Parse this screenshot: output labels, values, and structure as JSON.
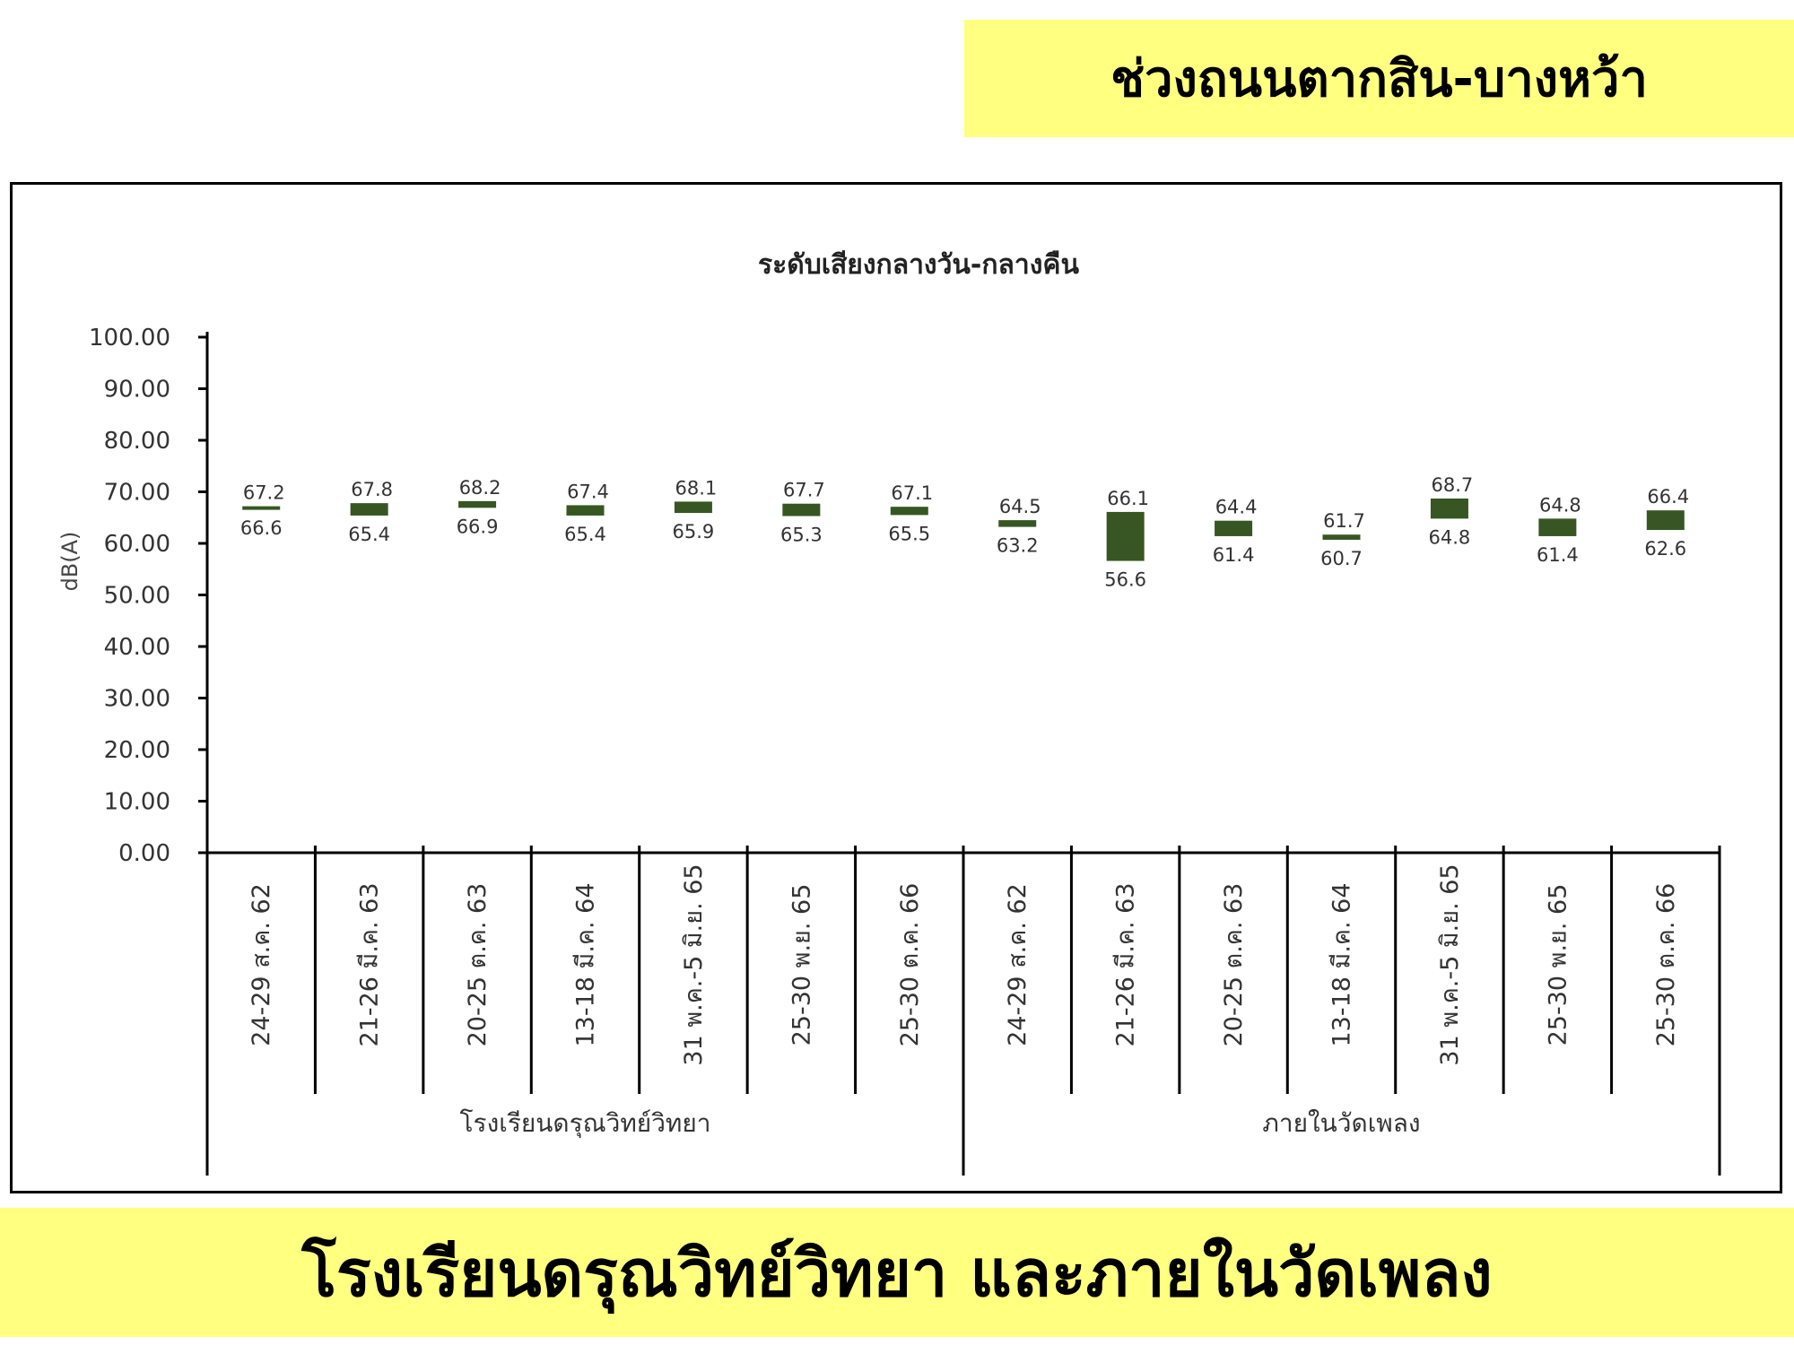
{
  "header": {
    "title": "ช่วงถนนตากสิน-บางหว้า"
  },
  "footer": {
    "title": "โรงเรียนดรุณวิทย์วิทยา และภายในวัดเพลง"
  },
  "chart_data": {
    "type": "floating-bar",
    "title": "ระดับเสียงกลางวัน-กลางคืน",
    "xlabel": "",
    "ylabel": "dB(A)",
    "ylim": [
      0,
      100
    ],
    "yticks": [
      "0.00",
      "10.00",
      "20.00",
      "30.00",
      "40.00",
      "50.00",
      "60.00",
      "70.00",
      "80.00",
      "90.00",
      "100.00"
    ],
    "bar_color": "#375623",
    "groups": [
      {
        "name": "โรงเรียนดรุณวิทย์วิทยา",
        "categories": [
          "24-29 ส.ค. 62",
          "21-26 มี.ค. 63",
          "20-25 ต.ค. 63",
          "13-18 มี.ค. 64",
          "31 พ.ค.-5 มิ.ย. 65",
          "25-30 พ.ย. 65",
          "25-30  ต.ค. 66"
        ]
      },
      {
        "name": "ภายในวัดเพลง",
        "categories": [
          "24-29 ส.ค. 62",
          "21-26 มี.ค. 63",
          "20-25 ต.ค. 63",
          "13-18 มี.ค. 64",
          "31 พ.ค.-5 มิ.ย. 65",
          "25-30 พ.ย. 65",
          "25-30 ต.ค. 66"
        ]
      }
    ],
    "high": [
      67.2,
      67.8,
      68.2,
      67.4,
      68.1,
      67.7,
      67.1,
      64.5,
      66.1,
      64.4,
      61.7,
      68.7,
      64.8,
      66.4
    ],
    "low": [
      66.6,
      65.4,
      66.9,
      65.4,
      65.9,
      65.3,
      65.5,
      63.2,
      56.6,
      61.4,
      60.7,
      64.8,
      61.4,
      62.6
    ],
    "grid": false,
    "legend": "none"
  }
}
